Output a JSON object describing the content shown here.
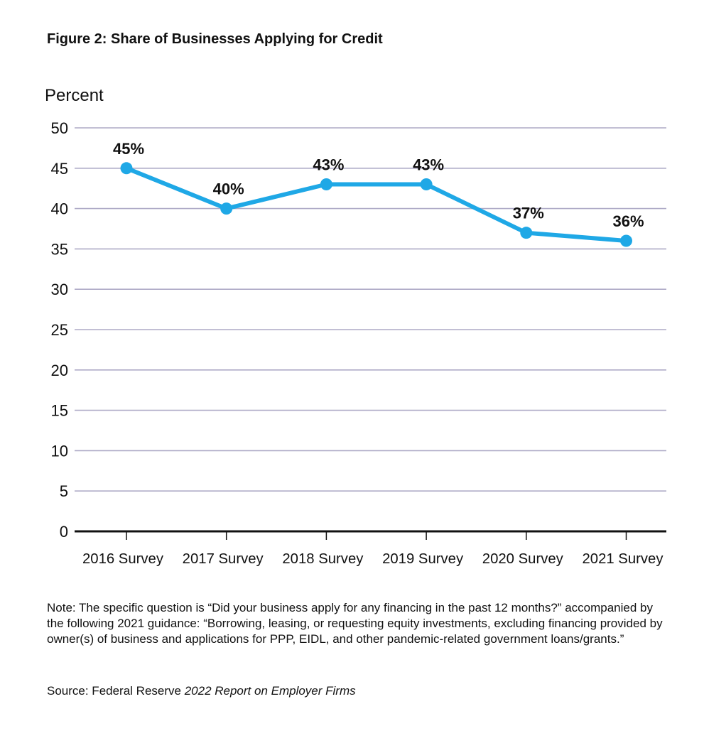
{
  "figure_title": "Figure 2: Share of Businesses Applying for Credit",
  "note": "Note: The specific question is “Did your business apply for any financing in the past 12 months?” accompanied by the following 2021 guidance: “Borrowing, leasing, or requesting equity investments, excluding financing provided by owner(s) of business and applications for PPP, EIDL, and other pandemic-related government loans/grants.”",
  "source": {
    "prefix": "Source: Federal Reserve ",
    "title": "2022 Report on Employer Firms"
  },
  "colors": {
    "series": "#1fa8e6",
    "grid": "#aeaac6",
    "axis": "#111111",
    "text": "#111111"
  },
  "chart_data": {
    "type": "line",
    "title": "Figure 2: Share of Businesses Applying for Credit",
    "ylabel": "Percent",
    "xlabel": "",
    "ylim": [
      0,
      50
    ],
    "yticks": [
      0,
      5,
      10,
      15,
      20,
      25,
      30,
      35,
      40,
      45,
      50
    ],
    "grid": true,
    "legend": "none",
    "categories": [
      "2016 Survey",
      "2017 Survey",
      "2018 Survey",
      "2019 Survey",
      "2020 Survey",
      "2021 Survey"
    ],
    "series": [
      {
        "values": [
          45,
          40,
          43,
          43,
          37,
          36
        ],
        "data_labels": [
          "45%",
          "40%",
          "43%",
          "43%",
          "37%",
          "36%"
        ]
      }
    ]
  }
}
